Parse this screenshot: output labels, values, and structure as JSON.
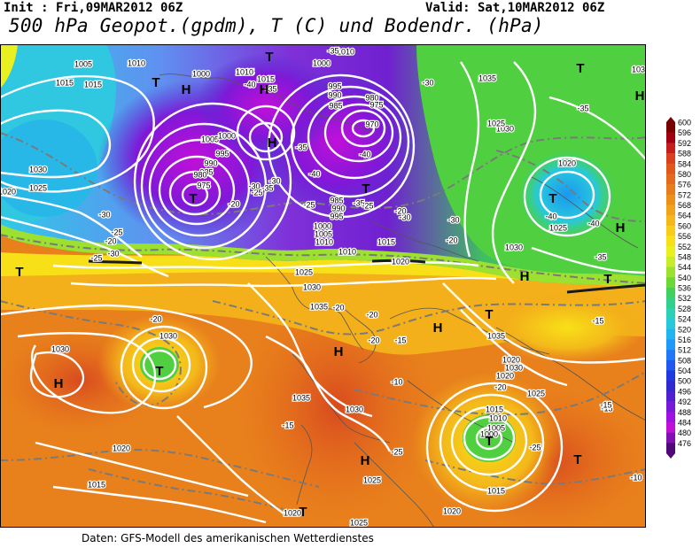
{
  "header": {
    "init": "Init : Fri,09MAR2012 06Z",
    "valid": "Valid: Sat,10MAR2012 06Z",
    "title": "500 hPa Geopot.(gpdm), T (C) und Bodendr. (hPa)"
  },
  "footer": {
    "source": "Daten: GFS-Modell des amerikanischen Wetterdienstes"
  },
  "legend": {
    "values": [
      "600",
      "596",
      "592",
      "588",
      "584",
      "580",
      "576",
      "572",
      "568",
      "564",
      "560",
      "556",
      "552",
      "548",
      "544",
      "540",
      "536",
      "532",
      "528",
      "524",
      "520",
      "516",
      "512",
      "508",
      "504",
      "500",
      "496",
      "492",
      "488",
      "484",
      "480",
      "476"
    ],
    "colors": [
      "#7a0000",
      "#a00010",
      "#c41e1e",
      "#d8401e",
      "#e0581c",
      "#e46a1e",
      "#e87c1c",
      "#ec901a",
      "#f0a41a",
      "#f4b81a",
      "#f8cc18",
      "#f8e018",
      "#e8f020",
      "#c8ec28",
      "#9ce030",
      "#6cd838",
      "#40d060",
      "#30d08c",
      "#2cd0b4",
      "#28c8dc",
      "#20b4f0",
      "#2098f8",
      "#2078f8",
      "#2058f0",
      "#2038e0",
      "#3028d0",
      "#5020d0",
      "#7818d8",
      "#a010e0",
      "#c010d8",
      "#8010b0",
      "#500878"
    ]
  },
  "map_labels": {
    "isobars": [
      "1005",
      "1010",
      "1015",
      "1000",
      "1005",
      "1015",
      "1030",
      "1025",
      "1020",
      "1010",
      "1015",
      "1010",
      "1000",
      "995",
      "990",
      "985",
      "980",
      "975",
      "970",
      "1005",
      "1000",
      "995",
      "990",
      "985",
      "980",
      "975",
      "1010",
      "1005",
      "1000",
      "995",
      "990",
      "985",
      "1010",
      "1015",
      "1020",
      "1025",
      "1030",
      "1035",
      "1030",
      "1025",
      "1020",
      "1025",
      "1030",
      "1035",
      "1030",
      "1035",
      "1020",
      "1025",
      "1030",
      "1020",
      "1015",
      "1010",
      "1005",
      "1000",
      "1015",
      "1020",
      "1025",
      "1020",
      "1015",
      "1030",
      "1035",
      "1030",
      "1025",
      "1020",
      "1030"
    ],
    "temperatures": [
      "-35",
      "-30",
      "-35",
      "-40",
      "-35",
      "-30",
      "-25",
      "-20",
      "-35",
      "-40",
      "-30",
      "-25",
      "-35",
      "-40",
      "-30",
      "-25",
      "-20",
      "-30",
      "-35",
      "-40",
      "-35",
      "-30",
      "-25",
      "-20",
      "-25",
      "-30",
      "-40",
      "-20",
      "-20",
      "-15",
      "-15",
      "-20",
      "-15",
      "-10",
      "-20",
      "-25",
      "-20",
      "-15",
      "-10",
      "-15",
      "-20",
      "-25"
    ],
    "highs": [
      "H",
      "H",
      "H",
      "H",
      "H",
      "H",
      "H",
      "H",
      "H",
      "H"
    ],
    "lows": [
      "T",
      "T",
      "T",
      "T",
      "T",
      "T",
      "T",
      "T",
      "T",
      "T",
      "T",
      "T",
      "T"
    ]
  }
}
